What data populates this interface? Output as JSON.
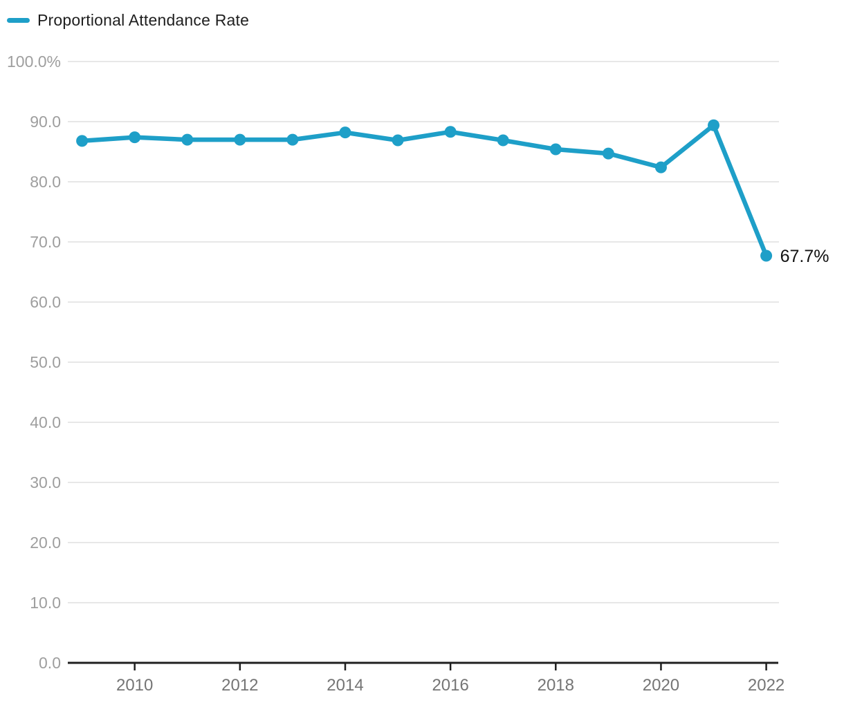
{
  "legend": {
    "series_label": "Proportional Attendance Rate"
  },
  "colors": {
    "line": "#1e9fc8",
    "grid": "#e7e7e7",
    "axis": "#1f1f1f",
    "y_tick_label": "#9e9e9e",
    "x_tick_label": "#757575",
    "data_label": "#111111"
  },
  "chart_data": {
    "type": "line",
    "title": "",
    "x": [
      2009,
      2010,
      2011,
      2012,
      2013,
      2014,
      2015,
      2016,
      2017,
      2018,
      2019,
      2020,
      2021,
      2022
    ],
    "series": [
      {
        "name": "Proportional Attendance Rate",
        "values": [
          86.8,
          87.4,
          87.0,
          87.0,
          87.0,
          88.2,
          86.9,
          88.3,
          86.9,
          85.4,
          84.7,
          82.4,
          89.4,
          67.7
        ]
      }
    ],
    "ylim": [
      0,
      100
    ],
    "y_tick_step": 10,
    "y_tick_labels": [
      "100.0%",
      "90.0",
      "80.0",
      "70.0",
      "60.0",
      "50.0",
      "40.0",
      "30.0",
      "20.0",
      "10.0",
      "0.0"
    ],
    "x_tick_labels": [
      "2010",
      "2012",
      "2014",
      "2016",
      "2018",
      "2020",
      "2022"
    ],
    "grid": "horizontal",
    "legend_position": "top-left",
    "last_point_label": "67.7%"
  }
}
